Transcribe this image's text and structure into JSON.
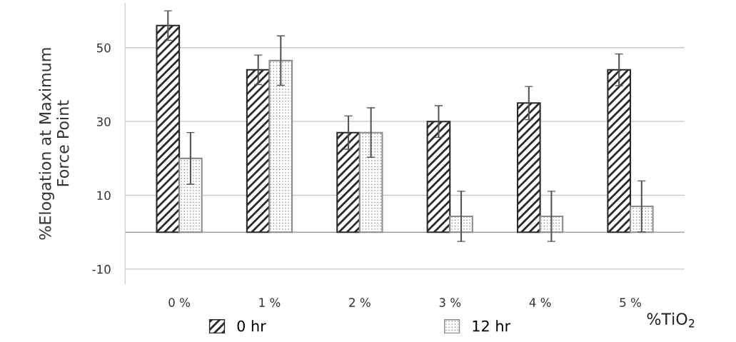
{
  "chart_data": {
    "type": "bar",
    "categories": [
      "0 %",
      "1 %",
      "2 %",
      "3 %",
      "4 %",
      "5 %"
    ],
    "series": [
      {
        "name": "0 hr",
        "color": "#2a2a2a",
        "values": [
          56,
          44,
          27,
          30,
          35,
          44
        ],
        "errors": [
          4,
          4,
          4.5,
          4.3,
          4.5,
          4.3
        ]
      },
      {
        "name": "12 hr",
        "color": "#8c8c8c",
        "values": [
          20,
          46.5,
          27,
          4.3,
          4.3,
          7
        ],
        "errors": [
          7,
          6.7,
          6.7,
          6.8,
          6.8,
          6.9
        ]
      }
    ],
    "xlabel": "%TiO$_{2}$",
    "ylabel": "%Elogation at Maximum\nForce Point",
    "ylim": [
      -14,
      62
    ],
    "yticks": [
      -10,
      10,
      30,
      50
    ],
    "ref_lines": [
      {
        "axis": "y",
        "value": 0,
        "color": "#a0a0a0"
      }
    ],
    "grid": "y",
    "legend": "bottom"
  }
}
